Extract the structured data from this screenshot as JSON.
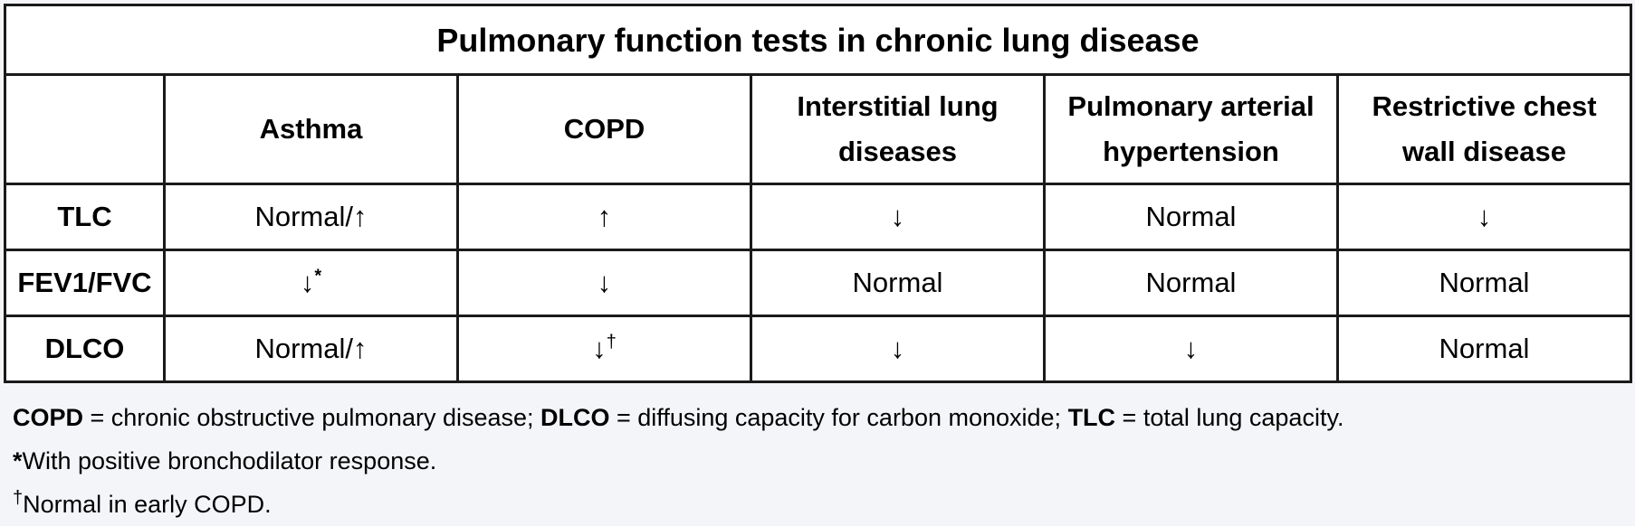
{
  "table": {
    "title": "Pulmonary function tests in chronic lung disease",
    "columns": [
      "Asthma",
      "COPD",
      "Interstitial lung diseases",
      "Pulmonary arterial hypertension",
      "Restrictive chest wall disease"
    ],
    "rows": [
      {
        "label": "TLC",
        "cells": [
          {
            "value": "Normal/↑",
            "mark": ""
          },
          {
            "value": "↑",
            "mark": ""
          },
          {
            "value": "↓",
            "mark": ""
          },
          {
            "value": "Normal",
            "mark": ""
          },
          {
            "value": "↓",
            "mark": ""
          }
        ]
      },
      {
        "label": "FEV1/FVC",
        "cells": [
          {
            "value": "↓",
            "mark": "*"
          },
          {
            "value": "↓",
            "mark": ""
          },
          {
            "value": "Normal",
            "mark": ""
          },
          {
            "value": "Normal",
            "mark": ""
          },
          {
            "value": "Normal",
            "mark": ""
          }
        ]
      },
      {
        "label": "DLCO",
        "cells": [
          {
            "value": "Normal/↑",
            "mark": ""
          },
          {
            "value": "↓",
            "mark": "†"
          },
          {
            "value": "↓",
            "mark": ""
          },
          {
            "value": "↓",
            "mark": ""
          },
          {
            "value": "Normal",
            "mark": ""
          }
        ]
      }
    ]
  },
  "footnotes": {
    "abbrev": {
      "copd_term": "COPD",
      "copd_def": " = chronic obstructive pulmonary disease; ",
      "dlco_term": "DLCO",
      "dlco_def": " = diffusing capacity for carbon monoxide; ",
      "tlc_term": "TLC",
      "tlc_def": " = total lung capacity."
    },
    "asterisk": {
      "mark": "*",
      "text": "With positive bronchodilator response."
    },
    "dagger": {
      "mark": "†",
      "text": "Normal in early COPD."
    }
  }
}
